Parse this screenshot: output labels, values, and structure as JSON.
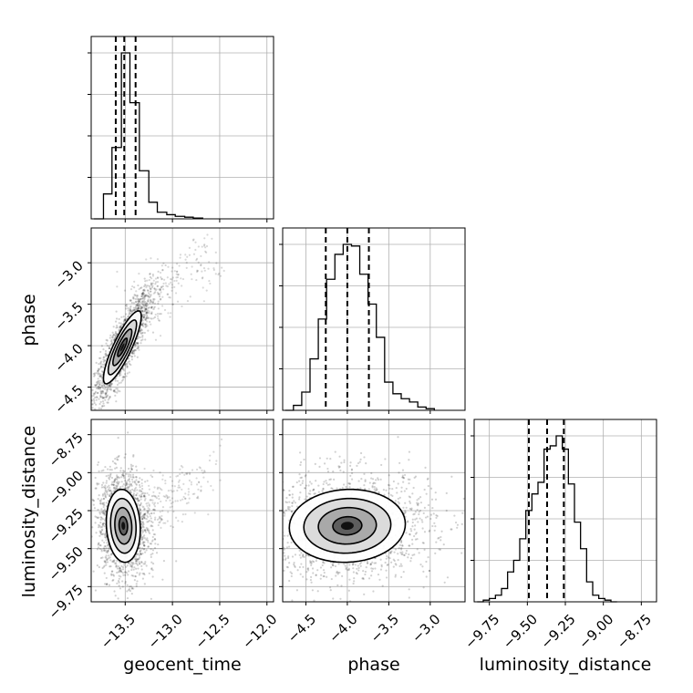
{
  "chart_data": {
    "type": "corner",
    "parameters": [
      "geocent_time",
      "phase",
      "luminosity_distance"
    ],
    "labels": {
      "geocent_time": "geocent_time",
      "phase": "phase",
      "luminosity_distance": "luminosity_distance"
    },
    "ranges": {
      "geocent_time": [
        -13.86,
        -11.93
      ],
      "phase": [
        -4.78,
        -2.58
      ],
      "luminosity_distance": [
        -9.85,
        -8.65
      ]
    },
    "ticks": {
      "geocent_time": [
        -13.5,
        -13.0,
        -12.5,
        -12.0
      ],
      "phase": [
        -4.5,
        -4.0,
        -3.5,
        -3.0
      ],
      "luminosity_distance": [
        -9.75,
        -9.5,
        -9.25,
        -9.0,
        -8.75
      ]
    },
    "tick_labels": {
      "geocent_time": [
        "−13.5",
        "−13.0",
        "−12.5",
        "−12.0"
      ],
      "phase": [
        "−4.5",
        "−4.0",
        "−3.5",
        "−3.0"
      ],
      "luminosity_distance": [
        "−9.75",
        "−9.50",
        "−9.25",
        "−9.00",
        "−8.75"
      ]
    },
    "quantiles": {
      "geocent_time": [
        -13.6,
        -13.51,
        -13.39
      ],
      "phase": [
        -4.26,
        -4.0,
        -3.74
      ],
      "luminosity_distance": [
        -9.49,
        -9.37,
        -9.26
      ]
    },
    "histograms": {
      "geocent_time": {
        "edges": [
          -13.83,
          -13.73,
          -13.64,
          -13.54,
          -13.45,
          -13.35,
          -13.25,
          -13.16,
          -13.06,
          -12.97,
          -12.87,
          -12.78,
          -12.68
        ],
        "counts": [
          0,
          0.15,
          0.43,
          1.0,
          0.7,
          0.29,
          0.1,
          0.04,
          0.025,
          0.015,
          0.01,
          0.005,
          0
        ]
      },
      "phase": {
        "edges": [
          -4.75,
          -4.65,
          -4.55,
          -4.45,
          -4.35,
          -4.25,
          -4.15,
          -4.05,
          -3.95,
          -3.85,
          -3.75,
          -3.65,
          -3.55,
          -3.45,
          -3.35,
          -3.25,
          -3.15,
          -3.05,
          -2.95
        ],
        "counts": [
          0,
          0.03,
          0.11,
          0.31,
          0.55,
          0.79,
          0.94,
          1.0,
          0.99,
          0.82,
          0.64,
          0.44,
          0.17,
          0.1,
          0.07,
          0.05,
          0.02,
          0.01,
          0
        ]
      },
      "luminosity_distance": {
        "edges": [
          -9.83,
          -9.79,
          -9.75,
          -9.71,
          -9.67,
          -9.63,
          -9.59,
          -9.55,
          -9.51,
          -9.47,
          -9.43,
          -9.39,
          -9.35,
          -9.31,
          -9.27,
          -9.23,
          -9.19,
          -9.15,
          -9.11,
          -9.07,
          -9.03,
          -8.99,
          -8.95,
          -8.91
        ],
        "counts": [
          0,
          0.01,
          0.02,
          0.04,
          0.08,
          0.18,
          0.25,
          0.38,
          0.55,
          0.65,
          0.72,
          0.92,
          0.94,
          1.0,
          0.92,
          0.71,
          0.48,
          0.32,
          0.12,
          0.04,
          0.02,
          0.01,
          0
        ]
      }
    },
    "pairs": [
      {
        "x": "geocent_time",
        "y": "phase",
        "center": [
          -13.53,
          -4.02
        ],
        "sigma": [
          0.1,
          0.22
        ],
        "corr": 0.85,
        "tail": {
          "from": [
            -13.4,
            -3.6
          ],
          "to": [
            -12.55,
            -2.85
          ]
        }
      },
      {
        "x": "geocent_time",
        "y": "luminosity_distance",
        "center": [
          -13.52,
          -9.35
        ],
        "sigma": [
          0.09,
          0.12
        ],
        "corr": -0.1,
        "tail": {
          "from": [
            -13.4,
            -9.3
          ],
          "to": [
            -12.6,
            -9.0
          ]
        }
      },
      {
        "x": "phase",
        "y": "luminosity_distance",
        "center": [
          -4.0,
          -9.35
        ],
        "sigma": [
          0.35,
          0.12
        ],
        "corr": 0.05,
        "tail": null
      }
    ],
    "contour_levels_sigma": [
      0.5,
      1.0,
      1.5,
      2.0
    ],
    "colors": {
      "line": "#000000",
      "grid": "#b0b0b0",
      "points": "#000000"
    },
    "grid": true,
    "legend": "none"
  }
}
